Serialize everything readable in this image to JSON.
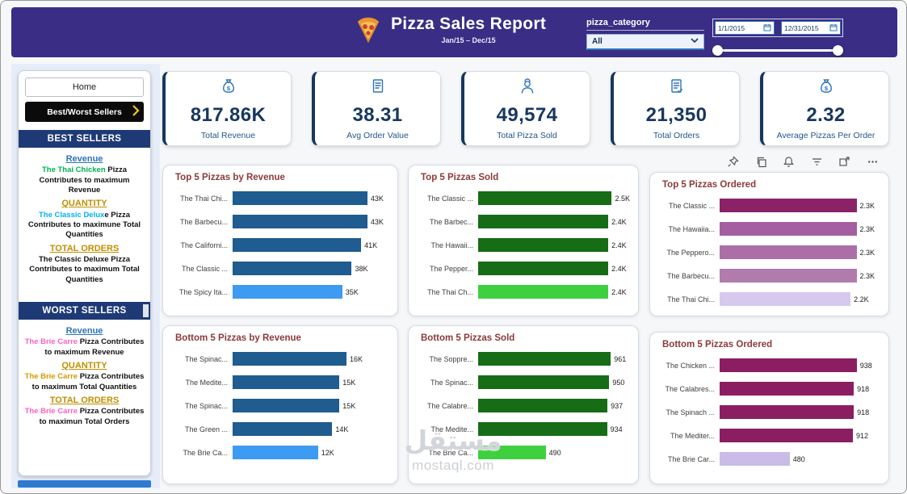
{
  "header": {
    "title": "Pizza Sales Report",
    "subtitle": "Jan/15 – Dec/15",
    "filter_label": "pizza_category",
    "filter_value": "All",
    "date_start": "1/1/2015",
    "date_end": "12/31/2015"
  },
  "colors": {
    "header_bg": "#3a2d85",
    "accent_blue": "#2e75b6",
    "navy": "#1e3a76",
    "kpi_text": "#17375e",
    "chart_title": "#8b3a3a",
    "bar_blue": "#1f5c8f",
    "bar_blue_light": "#3e9bf2",
    "bar_green": "#166d16",
    "bar_green_light": "#3fd03f",
    "bar_magenta": "#8b1e63",
    "bar_lavender": "#c9bce8"
  },
  "sidebar": {
    "home_label": "Home",
    "nav_label": "Best/Worst Sellers",
    "best": {
      "title": "BEST SELLERS",
      "revenue_heading": "Revenue",
      "revenue_highlight": "The Thai Chicken",
      "revenue_rest": " Pizza Contributes to maximum Revenue",
      "quantity_heading": "QUANTITY",
      "quantity_highlight": "The Classic Delux",
      "quantity_rest": "e Pizza Contributes to maximune Total Quantities",
      "orders_heading": "TOTAL ORDERS",
      "orders_text": "The Classic Deluxe Pizza Contributes to maximum Total Quantities"
    },
    "worst": {
      "title": "WORST SELLERS",
      "revenue_heading": "Revenue",
      "revenue_highlight": "The Brie Carre",
      "revenue_rest": " Pizza Contributes to maximum Revenue",
      "quantity_heading": "QUANTITY",
      "quantity_highlight": "The Brie Carre",
      "quantity_rest": " Pizza Contributes to maximum Total Quantities",
      "orders_heading": "TOTAL ORDERS",
      "orders_highlight": "The Brie Carre",
      "orders_rest": " Pizza Contributes to maximun Total Orders"
    }
  },
  "kpis": [
    {
      "value": "817.86K",
      "label": "Total Revenue",
      "icon": "money-bag-icon"
    },
    {
      "value": "38.31",
      "label": "Avg Order Value",
      "icon": "receipt-icon"
    },
    {
      "value": "49,574",
      "label": "Total Pizza Sold",
      "icon": "pizza-chef-icon"
    },
    {
      "value": "21,350",
      "label": "Total Orders",
      "icon": "order-list-icon"
    },
    {
      "value": "2.32",
      "label": "Average Pizzas Per Order",
      "icon": "money-bag-icon"
    }
  ],
  "toolbar": {
    "icons": [
      "pin",
      "copy",
      "alerts",
      "filters",
      "focus-mode",
      "more-options"
    ]
  },
  "chart_data": [
    {
      "type": "bar",
      "orientation": "horizontal",
      "title": "Top 5 Pizzas by Revenue",
      "categories": [
        "The Thai Chi...",
        "The Barbecu...",
        "The Californi...",
        "The Classic ...",
        "The Spicy Ita..."
      ],
      "values": [
        43000,
        43000,
        41000,
        38000,
        35000
      ],
      "value_labels": [
        "43K",
        "43K",
        "41K",
        "38K",
        "35K"
      ],
      "bar_colors": [
        "#1f5c8f",
        "#1f5c8f",
        "#1f5c8f",
        "#1f5c8f",
        "#3e9bf2"
      ],
      "xmax": 50000
    },
    {
      "type": "bar",
      "orientation": "horizontal",
      "title": "Top 5 Pizzas Sold",
      "categories": [
        "The Classic ...",
        "The Barbec...",
        "The Hawaii...",
        "The Pepper...",
        "The Thai Ch..."
      ],
      "values": [
        2500,
        2400,
        2400,
        2400,
        2400
      ],
      "value_labels": [
        "2.5K",
        "2.4K",
        "2.4K",
        "2.4K",
        "2.4K"
      ],
      "bar_colors": [
        "#166d16",
        "#166d16",
        "#166d16",
        "#166d16",
        "#3fd03f"
      ],
      "xmax": 2800
    },
    {
      "type": "bar",
      "orientation": "horizontal",
      "title": "Top 5 Pizzas Ordered",
      "categories": [
        "The Classic ...",
        "The Hawaiia...",
        "The Peppero...",
        "The Barbecu...",
        "The Thai Chi..."
      ],
      "values": [
        2300,
        2300,
        2300,
        2300,
        2200
      ],
      "value_labels": [
        "2.3K",
        "2.3K",
        "2.3K",
        "2.3K",
        "2.2K"
      ],
      "bar_colors": [
        "#8b2268",
        "#a35fa0",
        "#ab6ea7",
        "#b27bae",
        "#d7c9ed"
      ],
      "xmax": 2700
    },
    {
      "type": "bar",
      "orientation": "horizontal",
      "title": "Bottom 5 Pizzas by Revenue",
      "categories": [
        "The Spinac...",
        "The Medite...",
        "The Spinac...",
        "The Green ...",
        "The Brie Ca..."
      ],
      "values": [
        16000,
        15000,
        15000,
        14000,
        12000
      ],
      "value_labels": [
        "16K",
        "15K",
        "15K",
        "14K",
        "12K"
      ],
      "bar_colors": [
        "#1f5c8f",
        "#1f5c8f",
        "#1f5c8f",
        "#1f5c8f",
        "#3e9bf2"
      ],
      "xmax": 22000
    },
    {
      "type": "bar",
      "orientation": "horizontal",
      "title": "Bottom 5 Pizzas Sold",
      "categories": [
        "The Soppre...",
        "The Spinac...",
        "The Calabre...",
        "The Medite...",
        "The Brie Ca..."
      ],
      "values": [
        961,
        950,
        937,
        934,
        490
      ],
      "value_labels": [
        "961",
        "950",
        "937",
        "934",
        "490"
      ],
      "bar_colors": [
        "#166d16",
        "#166d16",
        "#166d16",
        "#166d16",
        "#3fd03f"
      ],
      "xmax": 1100
    },
    {
      "type": "bar",
      "orientation": "horizontal",
      "title": "Bottom 5 Pizzas Ordered",
      "categories": [
        "The Chicken ...",
        "The Calabres...",
        "The Spinach ...",
        "The Mediter...",
        "The Brie Car..."
      ],
      "values": [
        938,
        918,
        918,
        912,
        480
      ],
      "value_labels": [
        "938",
        "918",
        "918",
        "912",
        "480"
      ],
      "bar_colors": [
        "#8b1e63",
        "#8b1e63",
        "#8b1e63",
        "#8b1e63",
        "#c9bce8"
      ],
      "xmax": 1100
    }
  ],
  "watermark": {
    "arabic": "مستقل",
    "site": "mostaql.com"
  }
}
